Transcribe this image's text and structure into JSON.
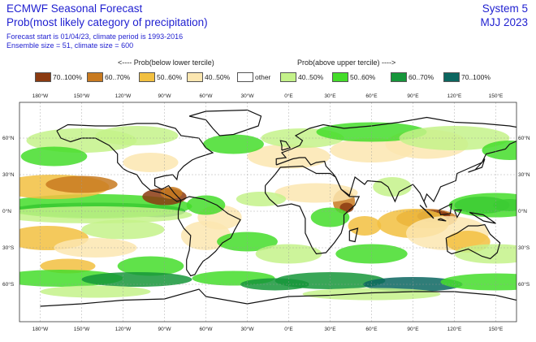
{
  "header": {
    "title": "ECMWF Seasonal Forecast",
    "subtitle": "Prob(most likely category of precipitation)",
    "meta_line1": "Forecast start is 01/04/23, climate period is 1993-2016",
    "meta_line2": "Ensemble size = 51, climate size = 600",
    "system": "System 5",
    "period": "MJJ 2023"
  },
  "legend": {
    "below_heading": "<---- Prob(below lower tercile)",
    "above_heading": "Prob(above upper tercile) ---->",
    "items": [
      {
        "label": "70..100%",
        "color": "#8b3a10"
      },
      {
        "label": "60..70%",
        "color": "#c87a20"
      },
      {
        "label": "50..60%",
        "color": "#f2c040"
      },
      {
        "label": "40..50%",
        "color": "#fbe6b0"
      },
      {
        "label": "other",
        "color": "#ffffff"
      },
      {
        "label": "40..50%",
        "color": "#c4f28a"
      },
      {
        "label": "50..60%",
        "color": "#44dd2a"
      },
      {
        "label": "60..70%",
        "color": "#16963a"
      },
      {
        "label": "70..100%",
        "color": "#0b6660"
      }
    ]
  },
  "map": {
    "lon_labels": [
      "180°W",
      "150°W",
      "120°W",
      "90°W",
      "60°W",
      "30°W",
      "0°E",
      "30°E",
      "60°E",
      "90°E",
      "120°E",
      "150°E"
    ],
    "lat_labels_left": [
      "60°N",
      "30°N",
      "0°N",
      "30°S",
      "60°S"
    ],
    "lat_labels_right": [
      "60°N",
      "30°N",
      "0°N",
      "30°S",
      "60°S"
    ]
  }
}
